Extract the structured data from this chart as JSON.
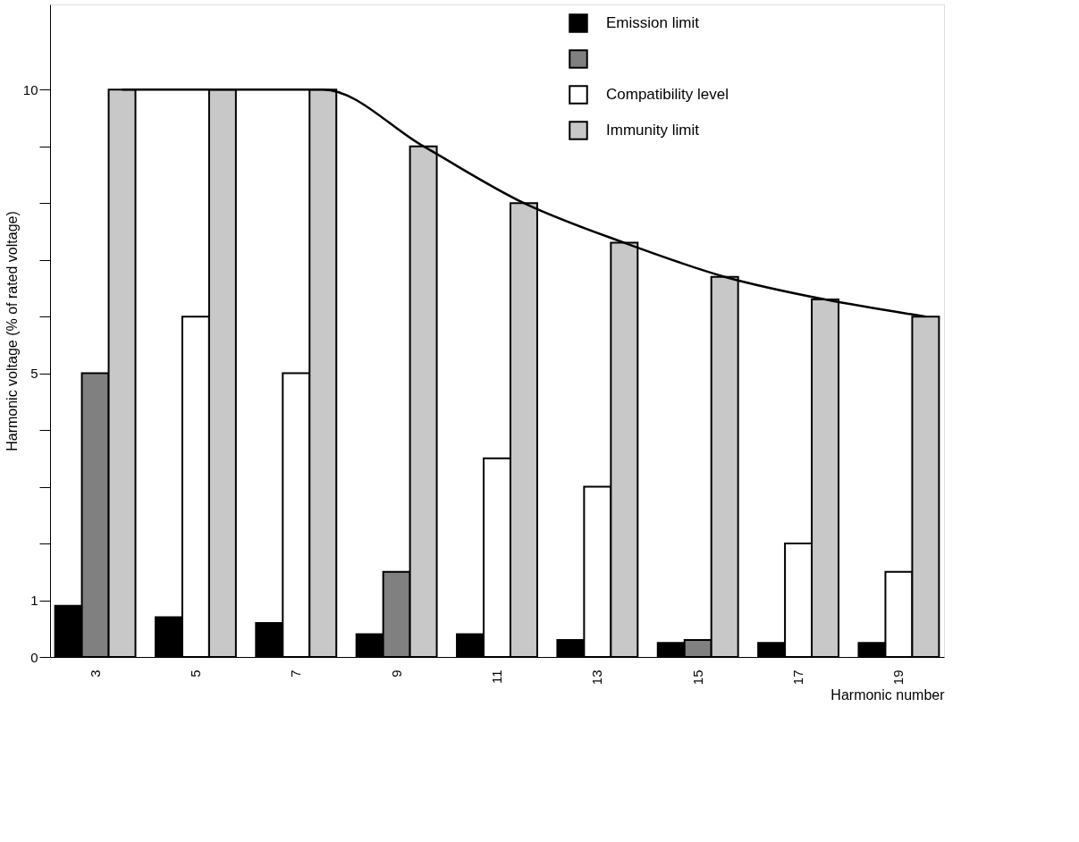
{
  "chart_data": {
    "type": "bar",
    "xlabel": "Harmonic number",
    "ylabel": "Harmonic voltage (% of rated voltage)",
    "categories": [
      "3",
      "5",
      "7",
      "9",
      "11",
      "13",
      "15",
      "17",
      "19"
    ],
    "series": [
      {
        "name": "Emission limit",
        "color": "#000000",
        "values": [
          0.9,
          0.7,
          0.6,
          0.4,
          0.4,
          0.3,
          0.25,
          0.25,
          0.25
        ]
      },
      {
        "name": "Compatibility level",
        "color": "#ffffff",
        "colors": [
          "#808080",
          "#ffffff",
          "#ffffff",
          "#808080",
          "#ffffff",
          "#ffffff",
          "#808080",
          "#ffffff",
          "#ffffff"
        ],
        "values": [
          5,
          6,
          5,
          1.5,
          3.5,
          3,
          0.3,
          2,
          1.5
        ]
      },
      {
        "name": "Immunity limit",
        "color": "#c8c8c8",
        "values": [
          10,
          10,
          10,
          9,
          8,
          7.3,
          6.7,
          6.3,
          6
        ]
      },
      {
        "type": "line",
        "color": "#000000",
        "values": [
          10,
          10,
          10,
          9,
          8,
          7.3,
          6.7,
          6.3,
          6
        ]
      }
    ],
    "ylim": [
      0,
      11.5
    ],
    "yticks": [
      0,
      1,
      {
        "value": 2,
        "label": null
      },
      {
        "value": 3,
        "label": null
      },
      {
        "value": 4,
        "label": null
      },
      5,
      {
        "value": 6,
        "label": null
      },
      {
        "value": 7,
        "label": null
      },
      {
        "value": 8,
        "label": null
      },
      {
        "value": 9,
        "label": null
      },
      10
    ],
    "grid": false,
    "legend": "top right"
  }
}
